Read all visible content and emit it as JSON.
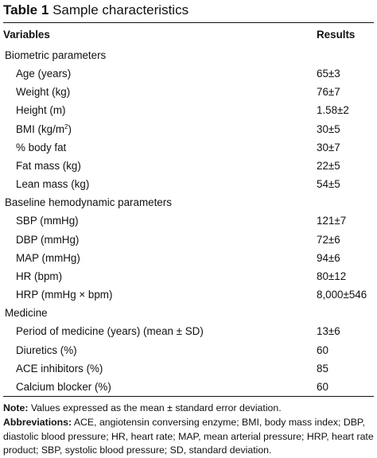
{
  "caption": {
    "label": "Table 1",
    "title": "Sample characteristics"
  },
  "table": {
    "headers": {
      "variables": "Variables",
      "results": "Results"
    },
    "sections": [
      {
        "heading": "Biometric parameters",
        "rows": [
          {
            "label": "Age (years)",
            "value": "65±3"
          },
          {
            "label": "Weight (kg)",
            "value": "76±7"
          },
          {
            "label": "Height (m)",
            "value": "1.58±2"
          },
          {
            "label": "BMI (kg/m",
            "sup": "2",
            "label_suffix": ")",
            "value": "30±5"
          },
          {
            "label": "% body fat",
            "value": "30±7"
          },
          {
            "label": "Fat mass (kg)",
            "value": "22±5"
          },
          {
            "label": "Lean mass (kg)",
            "value": "54±5"
          }
        ]
      },
      {
        "heading": "Baseline hemodynamic parameters",
        "rows": [
          {
            "label": "SBP (mmHg)",
            "value": "121±7"
          },
          {
            "label": "DBP (mmHg)",
            "value": "72±6"
          },
          {
            "label": "MAP (mmHg)",
            "value": "94±6"
          },
          {
            "label": "HR (bpm)",
            "value": "80±12"
          },
          {
            "label": "HRP (mmHg × bpm)",
            "value": "8,000±546"
          }
        ]
      },
      {
        "heading": "Medicine",
        "rows": [
          {
            "label": "Period of medicine (years) (mean ± SD)",
            "value": "13±6"
          },
          {
            "label": "Diuretics (%)",
            "value": "60"
          },
          {
            "label": "ACE inhibitors (%)",
            "value": "85"
          },
          {
            "label": "Calcium blocker (%)",
            "value": "60"
          }
        ]
      }
    ]
  },
  "notes": {
    "note_label": "Note:",
    "note_text": " Values expressed as the mean ± standard error deviation.",
    "abbr_label": "Abbreviations:",
    "abbr_text": " ACE, angiotensin conversing enzyme; BMI, body mass index; DBP, diastolic blood pressure; HR, heart rate; MAP, mean arterial pressure; HRP, heart rate product; SBP, systolic blood pressure; SD, standard deviation."
  }
}
